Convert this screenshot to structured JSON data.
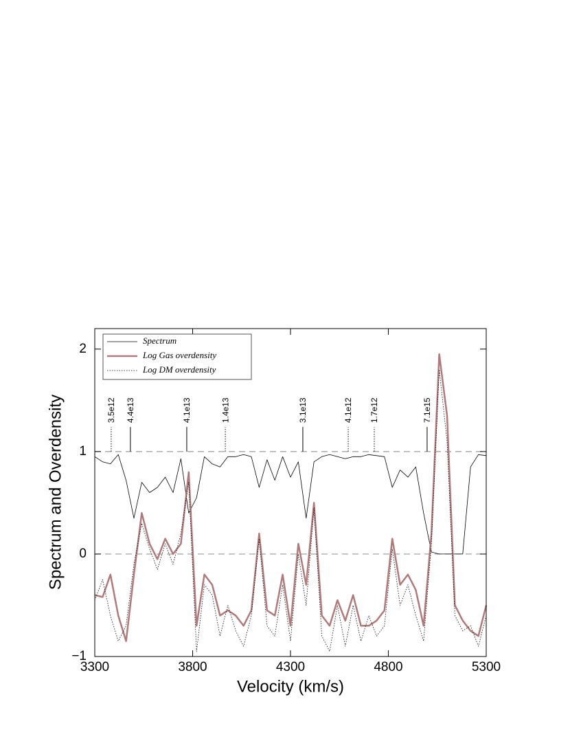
{
  "chart_data": {
    "type": "line",
    "xlabel": "Velocity (km/s)",
    "ylabel": "Spectrum and Overdensity",
    "xlim": [
      3300,
      5300
    ],
    "ylim": [
      -1,
      2.2
    ],
    "xticks": [
      3300,
      3800,
      4300,
      4800,
      5300
    ],
    "yticks": [
      {
        "value": -1,
        "label": "−1"
      },
      0,
      1,
      2
    ],
    "hlines": [
      0,
      1
    ],
    "legend": "upper left",
    "x": [
      3300,
      3340,
      3380,
      3420,
      3460,
      3500,
      3540,
      3580,
      3620,
      3660,
      3700,
      3740,
      3780,
      3820,
      3860,
      3900,
      3940,
      3980,
      4020,
      4060,
      4100,
      4140,
      4180,
      4220,
      4260,
      4300,
      4340,
      4380,
      4420,
      4460,
      4500,
      4540,
      4580,
      4620,
      4660,
      4700,
      4740,
      4780,
      4820,
      4860,
      4900,
      4940,
      4980,
      5020,
      5060,
      5100,
      5140,
      5180,
      5220,
      5260,
      5300
    ],
    "series": [
      {
        "name": "Spectrum",
        "color": "#000000",
        "style": "solid",
        "width": 0.8,
        "values": [
          0.95,
          0.9,
          0.88,
          0.97,
          0.72,
          0.35,
          0.7,
          0.6,
          0.65,
          0.75,
          0.6,
          0.93,
          0.4,
          0.55,
          0.95,
          0.88,
          0.85,
          0.95,
          0.95,
          0.97,
          0.95,
          0.65,
          0.92,
          0.72,
          0.95,
          0.75,
          0.9,
          0.35,
          0.9,
          0.95,
          0.97,
          0.95,
          0.93,
          0.95,
          0.95,
          0.97,
          0.96,
          0.95,
          0.65,
          0.82,
          0.75,
          0.85,
          0.4,
          0.02,
          0,
          0,
          0,
          0,
          0.85,
          0.97,
          0.96
        ]
      },
      {
        "name": "Log Gas overdensity",
        "color": "#b07a7a",
        "style": "solid",
        "width": 2.5,
        "values": [
          -0.4,
          -0.42,
          -0.2,
          -0.6,
          -0.85,
          -0.2,
          0.4,
          0.1,
          -0.05,
          0.15,
          0,
          0.1,
          0.8,
          -0.7,
          -0.2,
          -0.3,
          -0.6,
          -0.55,
          -0.6,
          -0.7,
          -0.55,
          0.2,
          -0.55,
          -0.6,
          -0.2,
          -0.7,
          0.1,
          -0.3,
          0.5,
          -0.6,
          -0.7,
          -0.45,
          -0.65,
          -0.4,
          -0.7,
          -0.7,
          -0.65,
          -0.55,
          0.15,
          -0.3,
          -0.2,
          -0.35,
          -0.7,
          0.2,
          1.95,
          1.35,
          -0.5,
          -0.65,
          -0.75,
          -0.8,
          -0.5
        ]
      },
      {
        "name": "Log DM overdensity",
        "color": "#000000",
        "style": "dotted",
        "width": 0.8,
        "values": [
          -0.45,
          -0.25,
          -0.6,
          -0.85,
          -0.7,
          -0.1,
          0.3,
          0.05,
          -0.15,
          0.1,
          -0.1,
          0.2,
          0.7,
          -0.95,
          -0.3,
          -0.4,
          -0.8,
          -0.5,
          -0.75,
          -0.9,
          -0.6,
          0.15,
          -0.7,
          -0.8,
          -0.3,
          -0.85,
          0,
          -0.5,
          0.45,
          -0.8,
          -0.95,
          -0.5,
          -0.9,
          -0.5,
          -0.85,
          -0.6,
          -0.8,
          -0.7,
          0.05,
          -0.5,
          -0.3,
          -0.6,
          -0.85,
          0.1,
          1.8,
          1.1,
          -0.6,
          -0.75,
          -0.7,
          -0.9,
          -0.6
        ]
      }
    ],
    "annotations": [
      {
        "x": 3384,
        "label": "3.5e12",
        "style": "dotted"
      },
      {
        "x": 3482,
        "label": "4.4e13",
        "style": "solid"
      },
      {
        "x": 3770,
        "label": "4.1e13",
        "style": "solid"
      },
      {
        "x": 3967,
        "label": "1.4e13",
        "style": "dotted"
      },
      {
        "x": 4363,
        "label": "3.1e13",
        "style": "solid"
      },
      {
        "x": 4595,
        "label": "4.1e12",
        "style": "dotted"
      },
      {
        "x": 4728,
        "label": "1.7e12",
        "style": "dotted"
      },
      {
        "x": 4998,
        "label": "7.1e15",
        "style": "solid"
      }
    ]
  }
}
